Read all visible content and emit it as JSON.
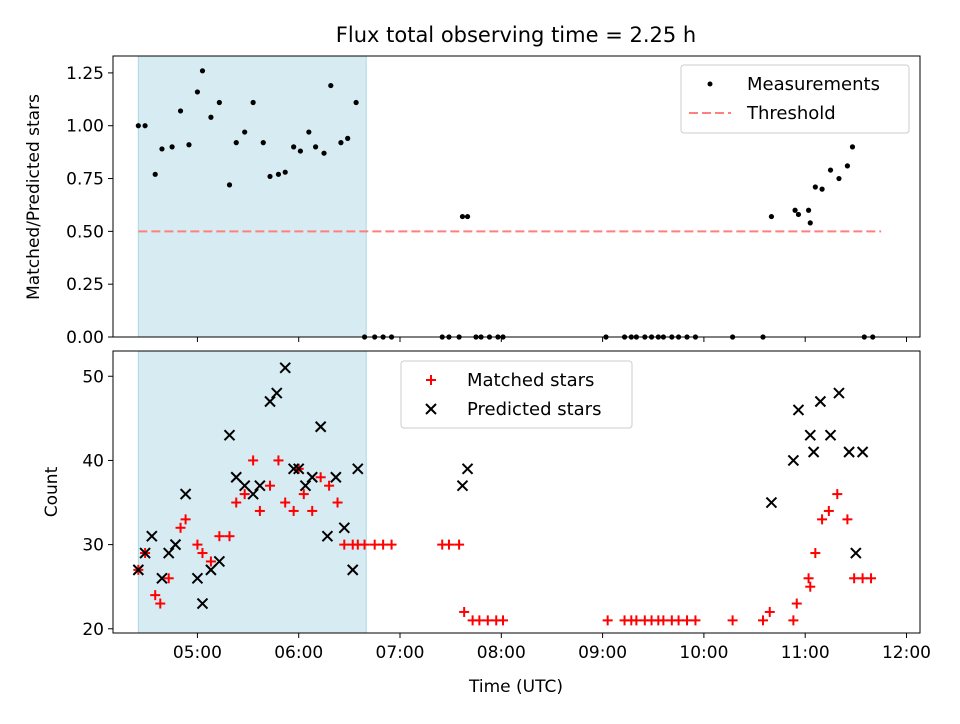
{
  "chart_data": [
    {
      "type": "scatter",
      "title": "Flux total observing time = 2.25 h",
      "ylabel": "Matched/Predicted stars",
      "xlabel": "",
      "ylim": [
        0,
        1.33
      ],
      "yticks": [
        "0.00",
        "0.25",
        "0.50",
        "0.75",
        "1.00",
        "1.25"
      ],
      "ytick_values": [
        0,
        0.25,
        0.5,
        0.75,
        1.0,
        1.25
      ],
      "highlight_span": [
        "04:25",
        "06:40"
      ],
      "colors": {
        "measure": "#000000",
        "threshold": "#ff7f7f",
        "span": "#add8e6"
      },
      "threshold": {
        "value": 0.5,
        "x_start": "04:25",
        "x_end": "11:45"
      },
      "legend": [
        "Measurements",
        "Threshold"
      ],
      "series": [
        {
          "name": "Measurements",
          "times": [
            "04:25",
            "04:29",
            "04:35",
            "04:39",
            "04:45",
            "04:50",
            "04:55",
            "05:00",
            "05:03",
            "05:08",
            "05:13",
            "05:19",
            "05:23",
            "05:28",
            "05:33",
            "05:39",
            "05:43",
            "05:48",
            "05:52",
            "05:57",
            "06:01",
            "06:06",
            "06:10",
            "06:15",
            "06:19",
            "06:25",
            "06:29",
            "06:34",
            "06:39",
            "06:45",
            "06:50",
            "06:55",
            "07:25",
            "07:29",
            "07:35",
            "07:37",
            "07:40",
            "07:45",
            "07:48",
            "07:53",
            "07:58",
            "08:01",
            "09:02",
            "09:13",
            "09:17",
            "09:20",
            "09:25",
            "09:29",
            "09:33",
            "09:36",
            "09:41",
            "09:45",
            "09:50",
            "09:55",
            "10:17",
            "10:35",
            "10:40",
            "10:54",
            "10:56",
            "11:02",
            "11:03",
            "11:06",
            "11:10",
            "11:15",
            "11:20",
            "11:25",
            "11:28",
            "11:35",
            "11:40"
          ],
          "values": [
            1.0,
            1.0,
            0.77,
            0.89,
            0.9,
            1.07,
            0.91,
            1.16,
            1.26,
            1.04,
            1.11,
            0.72,
            0.92,
            0.97,
            1.11,
            0.92,
            0.76,
            0.77,
            0.78,
            0.9,
            0.88,
            0.97,
            0.9,
            0.87,
            1.19,
            0.92,
            0.94,
            1.11,
            0,
            0,
            0,
            0,
            0,
            0,
            0,
            0.57,
            0.57,
            0,
            0,
            0,
            0,
            0,
            0,
            0,
            0,
            0,
            0,
            0,
            0,
            0,
            0,
            0,
            0,
            0,
            0,
            0,
            0.57,
            0.6,
            0.58,
            0.6,
            0.54,
            0.71,
            0.7,
            0.79,
            0.75,
            0.81,
            0.9,
            0,
            0
          ]
        }
      ]
    },
    {
      "type": "scatter",
      "title": "",
      "xlabel": "Time (UTC)",
      "ylabel": "Count",
      "ylim": [
        19.5,
        53
      ],
      "yticks": [
        "20",
        "30",
        "40",
        "50"
      ],
      "ytick_values": [
        20,
        30,
        40,
        50
      ],
      "xticks": [
        "05:00",
        "06:00",
        "07:00",
        "08:00",
        "09:00",
        "10:00",
        "11:00",
        "12:00"
      ],
      "highlight_span": [
        "04:25",
        "06:40"
      ],
      "colors": {
        "matched": "#ff0000",
        "predicted": "#000000",
        "span": "#add8e6"
      },
      "legend": [
        "Matched stars",
        "Predicted stars"
      ],
      "series": [
        {
          "name": "Matched stars",
          "marker": "+",
          "times": [
            "04:25",
            "04:29",
            "04:35",
            "04:38",
            "04:43",
            "04:50",
            "04:53",
            "05:00",
            "05:03",
            "05:08",
            "05:13",
            "05:19",
            "05:23",
            "05:28",
            "05:33",
            "05:37",
            "05:43",
            "05:48",
            "05:52",
            "05:57",
            "06:00",
            "06:03",
            "06:08",
            "06:13",
            "06:18",
            "06:23",
            "06:27",
            "06:32",
            "06:35",
            "06:39",
            "06:45",
            "06:50",
            "06:55",
            "07:25",
            "07:29",
            "07:35",
            "07:38",
            "07:43",
            "07:47",
            "07:52",
            "07:57",
            "08:01",
            "09:03",
            "09:13",
            "09:17",
            "09:20",
            "09:25",
            "09:29",
            "09:33",
            "09:36",
            "09:41",
            "09:45",
            "09:50",
            "09:55",
            "10:17",
            "10:35",
            "10:39",
            "10:53",
            "10:55",
            "11:02",
            "11:03",
            "11:06",
            "11:10",
            "11:14",
            "11:19",
            "11:25",
            "11:29",
            "11:34",
            "11:39"
          ],
          "values": [
            27,
            29,
            24,
            23,
            26,
            32,
            33,
            30,
            29,
            28,
            31,
            31,
            35,
            36,
            40,
            34,
            37,
            40,
            35,
            34,
            39,
            36,
            34,
            38,
            37,
            35,
            30,
            30,
            30,
            30,
            30,
            30,
            30,
            30,
            30,
            30,
            22,
            21,
            21,
            21,
            21,
            21,
            21,
            21,
            21,
            21,
            21,
            21,
            21,
            21,
            21,
            21,
            21,
            21,
            21,
            21,
            22,
            21,
            23,
            26,
            25,
            29,
            33,
            34,
            36,
            33,
            26,
            26,
            26
          ]
        },
        {
          "name": "Predicted stars",
          "marker": "x",
          "times": [
            "04:25",
            "04:29",
            "04:33",
            "04:39",
            "04:43",
            "04:47",
            "04:53",
            "05:00",
            "05:03",
            "05:08",
            "05:13",
            "05:19",
            "05:23",
            "05:28",
            "05:33",
            "05:37",
            "05:43",
            "05:47",
            "05:52",
            "05:57",
            "06:00",
            "06:04",
            "06:08",
            "06:13",
            "06:17",
            "06:22",
            "06:27",
            "06:32",
            "06:35",
            "07:37",
            "07:40",
            "10:40",
            "10:53",
            "10:56",
            "11:03",
            "11:05",
            "11:09",
            "11:15",
            "11:20",
            "11:26",
            "11:30",
            "11:34"
          ],
          "values": [
            27,
            29,
            31,
            26,
            29,
            30,
            36,
            26,
            23,
            27,
            28,
            43,
            38,
            37,
            36,
            37,
            47,
            48,
            51,
            39,
            39,
            37,
            38,
            44,
            31,
            38,
            32,
            27,
            39,
            37,
            39,
            35,
            40,
            46,
            43,
            41,
            47,
            43,
            48,
            41,
            29,
            41
          ]
        }
      ]
    }
  ]
}
